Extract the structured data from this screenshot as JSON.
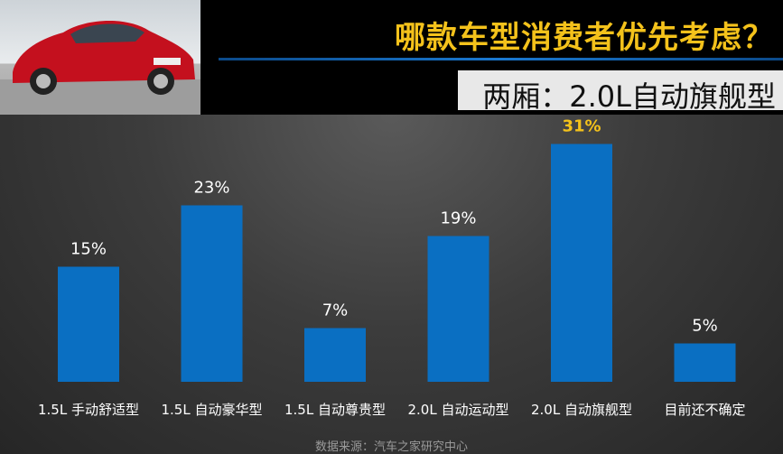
{
  "header": {
    "title": "哪款车型消费者优先考虑？",
    "subtitle": "两厢：2.0L自动旗舰型"
  },
  "chart_data": {
    "type": "bar",
    "categories": [
      "1.5L 手动舒适型",
      "1.5L 自动豪华型",
      "1.5L 自动尊贵型",
      "2.0L 自动运动型",
      "2.0L 自动旗舰型",
      "目前还不确定"
    ],
    "values": [
      15,
      23,
      7,
      19,
      31,
      5
    ],
    "data_labels": [
      "15%",
      "23%",
      "7%",
      "19%",
      "31%",
      "5%"
    ],
    "highlight_index": 4,
    "ylim": [
      0,
      35
    ],
    "bar_color": "#0a6fc2",
    "label_color": "#ffffff",
    "highlight_label_color": "#f4c21b",
    "grid": false,
    "legend": "none"
  },
  "footer": {
    "source": "数据来源：汽车之家研究中心"
  }
}
